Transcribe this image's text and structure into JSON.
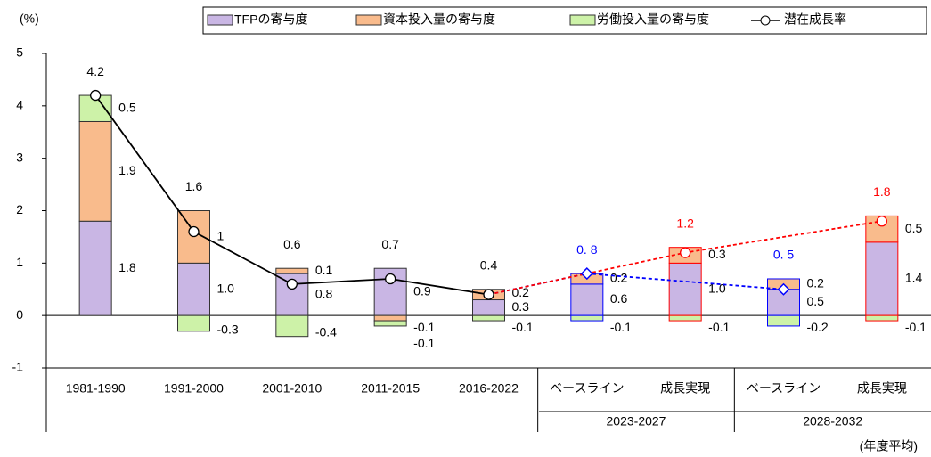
{
  "chart_data": {
    "type": "bar",
    "y_unit_label": "(%)",
    "x_unit_label": "(年度平均)",
    "categories": [
      "1981-1990",
      "1991-2000",
      "2001-2010",
      "2011-2015",
      "2016-2022",
      "ベースライン",
      "成長実現",
      "ベースライン",
      "成長実現"
    ],
    "groups": [
      {
        "label": "2023-2027",
        "from": 5,
        "to": 6
      },
      {
        "label": "2028-2032",
        "from": 7,
        "to": 8
      }
    ],
    "series": [
      {
        "name": "TFPの寄与度",
        "color": "#c9b6e4",
        "values": [
          1.8,
          1.0,
          0.8,
          0.9,
          0.3,
          0.6,
          1.0,
          0.5,
          1.4
        ],
        "value_labels": [
          "1.8",
          "1.0",
          "0.8",
          "0.9",
          "0.3",
          "0.6",
          "1.0",
          "0.5",
          "1.4"
        ]
      },
      {
        "name": "資本投入量の寄与度",
        "color": "#f9bb8c",
        "values": [
          1.9,
          1.0,
          0.1,
          -0.1,
          0.2,
          0.2,
          0.3,
          0.2,
          0.5
        ]
      },
      {
        "name": "労働投入量の寄与度",
        "color": "#cdf2a8",
        "values": [
          0.5,
          -0.3,
          -0.4,
          -0.1,
          -0.1,
          -0.1,
          -0.1,
          -0.2,
          -0.1
        ]
      }
    ],
    "line": {
      "name": "潜在成長率",
      "color": "#000000",
      "values": [
        4.2,
        1.6,
        0.6,
        0.7,
        0.4,
        0.8,
        1.2,
        0.5,
        1.8
      ],
      "value_labels": [
        "4.2",
        "1.6",
        "0.6",
        "0.7",
        "0.4",
        "0. 8",
        "1.2",
        "0. 5",
        "1.8"
      ],
      "label_colors": [
        "#000000",
        "#000000",
        "#000000",
        "#000000",
        "#000000",
        "#0000ff",
        "#ff0000",
        "#0000ff",
        "#ff0000"
      ],
      "markers": [
        "circle",
        "circle",
        "circle",
        "circle",
        "circle",
        "diamond",
        "circle",
        "diamond",
        "circle"
      ],
      "pieces": [
        {
          "indices": [
            0,
            1,
            2,
            3,
            4
          ],
          "color": "#000000",
          "dashed": false
        },
        {
          "indices": [
            4,
            5,
            7
          ],
          "color": "#0000ff",
          "dashed": true
        },
        {
          "indices": [
            4,
            6,
            8
          ],
          "color": "#ff0000",
          "dashed": true
        }
      ]
    },
    "outline_colors": [
      "#333333",
      "#333333",
      "#333333",
      "#333333",
      "#333333",
      "#0000ff",
      "#ff0000",
      "#0000ff",
      "#ff0000"
    ],
    "ylim": [
      -1,
      5
    ],
    "yticks": [
      -1,
      0,
      1,
      2,
      3,
      4,
      5
    ],
    "legend": "top-right"
  }
}
